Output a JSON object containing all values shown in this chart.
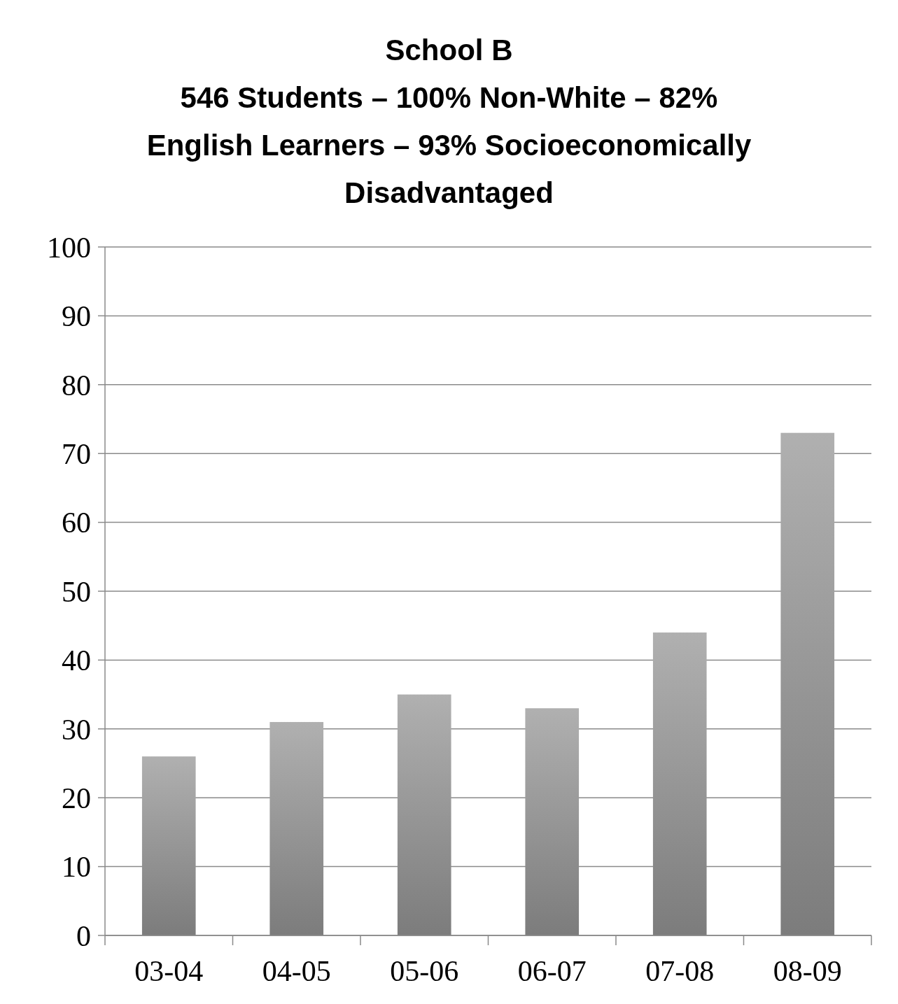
{
  "chart_data": {
    "type": "bar",
    "title": "School B\n546 Students – 100% Non-White – 82% English Learners – 93% Socioeconomically Disadvantaged",
    "categories": [
      "03-04",
      "04-05",
      "05-06",
      "06-07",
      "07-08",
      "08-09"
    ],
    "values": [
      26,
      31,
      35,
      33,
      44,
      73
    ],
    "color": "#999999",
    "ylim": [
      0,
      100
    ],
    "yticks": [
      0,
      10,
      20,
      30,
      40,
      50,
      60,
      70,
      80,
      90,
      100
    ],
    "grid": "y"
  }
}
